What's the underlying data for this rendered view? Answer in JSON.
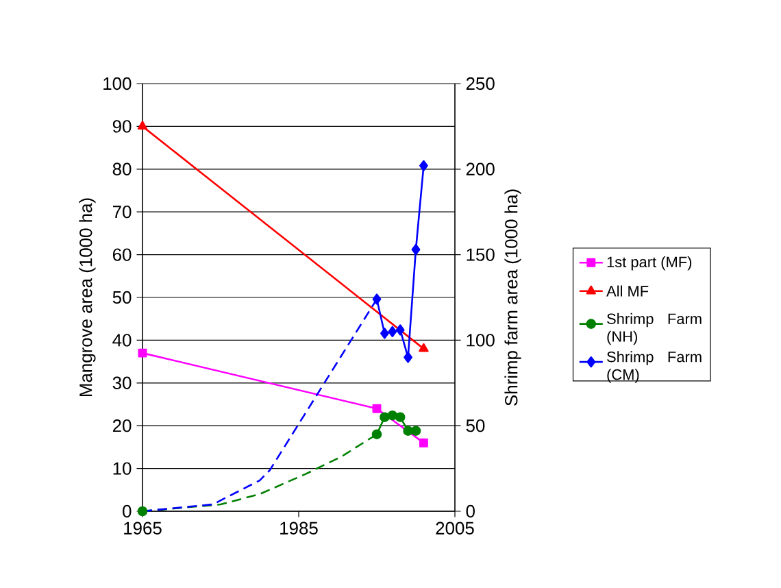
{
  "chart_data": {
    "type": "line",
    "ylabel": "Mangrove area (1000 ha)",
    "y2label": "Shrimp farm area (1000 ha)",
    "xlim": [
      1965,
      2005
    ],
    "xticks": [
      1965,
      1985,
      2005
    ],
    "ylim": [
      0,
      100
    ],
    "yticks": [
      0,
      10,
      20,
      30,
      40,
      50,
      60,
      70,
      80,
      90,
      100
    ],
    "y2lim": [
      0,
      250
    ],
    "y2ticks": [
      0,
      50,
      100,
      150,
      200,
      250
    ],
    "grid": "y",
    "legend": "right",
    "series": [
      {
        "name": "1st part (MF)",
        "color": "#ff00ff",
        "marker": "square",
        "x": [
          1965,
          1995,
          2001
        ],
        "values": [
          37,
          24,
          16
        ]
      },
      {
        "name": "All MF",
        "color": "#ff0000",
        "marker": "triangle",
        "x": [
          1965,
          2001
        ],
        "values": [
          90,
          38
        ]
      },
      {
        "name": "Shrimp Farm (NH)",
        "color": "#008000",
        "marker": "circle",
        "axis": "y2",
        "x": [
          1965,
          1980,
          1995,
          1996,
          1997,
          1998,
          1999,
          2000
        ],
        "values": [
          0,
          null,
          45,
          55,
          56,
          55,
          47,
          47
        ]
      },
      {
        "name": "Shrimp Farm (CM)",
        "color": "#0000ff",
        "marker": "diamond",
        "axis": "y2",
        "x": [
          1995,
          1996,
          1997,
          1998,
          1999,
          2000,
          2001
        ],
        "values": [
          124,
          104,
          105,
          106,
          90,
          153,
          202
        ]
      },
      {
        "color": "#008000",
        "marker": "none",
        "line_style": "dashed",
        "axis": "y2",
        "x": [
          1965,
          1975,
          1980,
          1986,
          1990.5,
          1995
        ],
        "values": [
          0,
          4,
          10,
          22,
          32,
          45
        ]
      },
      {
        "color": "#0000ff",
        "marker": "none",
        "line_style": "dashed",
        "axis": "y2",
        "x": [
          1965,
          1974,
          1980,
          1981.3,
          1995
        ],
        "values": [
          0,
          4,
          18,
          24,
          124
        ]
      }
    ]
  }
}
